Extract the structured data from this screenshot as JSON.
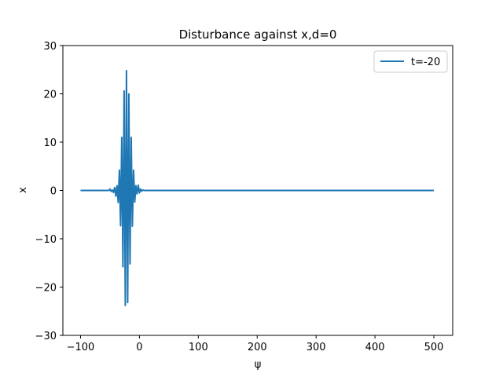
{
  "chart_data": {
    "type": "line",
    "title": "Disturbance against x,d=0",
    "xlabel": "ψ",
    "ylabel": "x",
    "xlim": [
      -130,
      532
    ],
    "ylim": [
      -30,
      30
    ],
    "xticks": [
      -100,
      0,
      100,
      200,
      300,
      400,
      500
    ],
    "yticks": [
      -30,
      -20,
      -10,
      0,
      10,
      20,
      30
    ],
    "grid": false,
    "legend_position": "upper-right",
    "series": [
      {
        "name": "t=-20",
        "color": "#1f77b4",
        "x": [
          -100,
          -60,
          -52,
          -50,
          -48,
          -46,
          -44,
          -42,
          -40,
          -38,
          -36,
          -34,
          -32,
          -30,
          -28,
          -26,
          -24,
          -22,
          -20,
          -18,
          -16,
          -14,
          -12,
          -10,
          -8,
          -6,
          -4,
          -2,
          0,
          2,
          4,
          6,
          8,
          10,
          20,
          40,
          100,
          200,
          300,
          400,
          500
        ],
        "y": [
          0,
          0,
          0,
          0.3,
          -0.2,
          0.1,
          -0.4,
          0.6,
          -1.2,
          1.0,
          -2.5,
          4.2,
          -7.3,
          11.0,
          -15.8,
          20.6,
          -23.8,
          24.8,
          -23.2,
          20.0,
          -15.2,
          11.0,
          -7.4,
          4.2,
          -2.4,
          1.0,
          -0.7,
          1.1,
          -0.5,
          0.3,
          -0.15,
          0.1,
          0,
          0,
          0,
          0,
          0,
          0,
          0,
          0,
          0
        ]
      }
    ]
  }
}
